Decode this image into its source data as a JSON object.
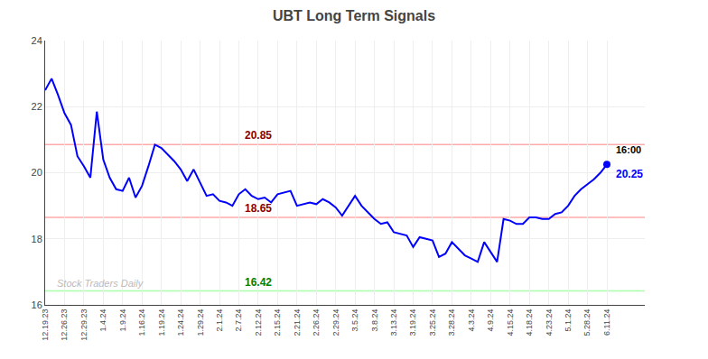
{
  "chart_data": {
    "type": "line",
    "title": "UBT Long Term Signals",
    "categories": [
      "12.19.23",
      null,
      null,
      "12.26.23",
      null,
      null,
      "12.29.23",
      null,
      null,
      "1.4.24",
      null,
      null,
      "1.9.24",
      null,
      null,
      "1.16.24",
      null,
      null,
      "1.19.24",
      null,
      null,
      "1.24.24",
      null,
      null,
      "1.29.24",
      null,
      null,
      "2.1.24",
      null,
      null,
      "2.7.24",
      null,
      null,
      "2.12.24",
      null,
      null,
      "2.15.24",
      null,
      null,
      "2.21.24",
      null,
      null,
      "2.26.24",
      null,
      null,
      "2.29.24",
      null,
      null,
      "3.5.24",
      null,
      null,
      "3.8.24",
      null,
      null,
      "3.13.24",
      null,
      null,
      "3.19.24",
      null,
      null,
      "3.25.24",
      null,
      null,
      "3.28.24",
      null,
      null,
      "4.3.24",
      null,
      null,
      "4.9.24",
      null,
      null,
      "4.15.24",
      null,
      null,
      "4.18.24",
      null,
      null,
      "4.23.24",
      null,
      null,
      "5.1.24",
      null,
      null,
      "5.28.24",
      null,
      null,
      "6.11.24"
    ],
    "values": [
      22.5,
      22.85,
      22.35,
      21.8,
      21.45,
      20.5,
      20.2,
      19.85,
      21.85,
      20.4,
      19.85,
      19.5,
      19.45,
      19.85,
      19.25,
      19.6,
      20.2,
      20.85,
      20.75,
      20.55,
      20.35,
      20.1,
      19.75,
      20.1,
      19.7,
      19.3,
      19.35,
      19.15,
      19.1,
      19.0,
      19.35,
      19.5,
      19.3,
      19.2,
      19.25,
      19.1,
      19.35,
      19.4,
      19.45,
      19.0,
      19.05,
      19.1,
      19.05,
      19.2,
      19.1,
      18.95,
      18.7,
      19.0,
      19.3,
      19.0,
      18.8,
      18.6,
      18.45,
      18.5,
      18.2,
      18.15,
      18.1,
      17.75,
      18.05,
      18.0,
      17.95,
      17.45,
      17.55,
      17.9,
      17.7,
      17.5,
      17.4,
      17.3,
      17.9,
      17.6,
      17.3,
      18.6,
      18.55,
      18.45,
      18.45,
      18.65,
      18.65,
      18.6,
      18.6,
      18.75,
      18.8,
      19.0,
      19.3,
      19.5,
      19.65,
      19.8,
      20.0,
      20.25
    ],
    "color": "blue",
    "ylim": [
      16,
      24
    ],
    "yticks": [
      16,
      18,
      20,
      22,
      24
    ],
    "grid": true,
    "reference_lines": [
      {
        "value": 20.85,
        "label": "20.85",
        "color": "#ffaaaa",
        "label_color": "darkred"
      },
      {
        "value": 18.65,
        "label": "18.65",
        "color": "#ffaaaa",
        "label_color": "darkred"
      },
      {
        "value": 16.42,
        "label": "16.42",
        "color": "#aaffaa",
        "label_color": "green"
      }
    ],
    "end_labels": [
      {
        "text": "16:00",
        "color": "black"
      },
      {
        "text": "20.25",
        "color": "blue"
      }
    ],
    "watermark": {
      "text": "Stock Traders Daily",
      "color": "#bbbbbb"
    }
  }
}
